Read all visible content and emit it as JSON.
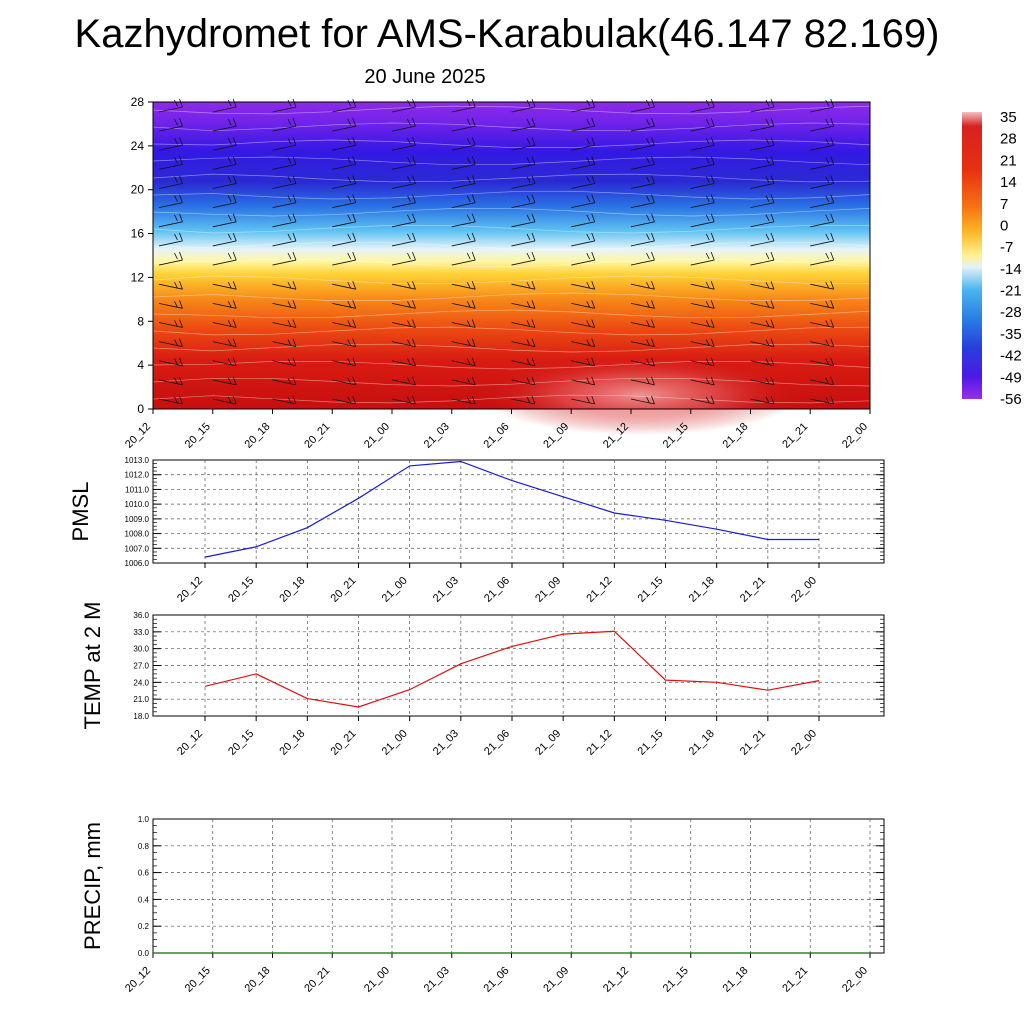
{
  "title": "Kazhydromet for AMS-Karabulak(46.147 82.169)",
  "subtitle": "20 June 2025",
  "chart_data": [
    {
      "type": "heatmap",
      "title": "",
      "ylim": [
        0,
        28
      ],
      "y_ticks": [
        "0",
        "4",
        "8",
        "12",
        "16",
        "20",
        "24",
        "28"
      ],
      "x_ticks": [
        "20_12",
        "20_15",
        "20_18",
        "20_21",
        "21_00",
        "21_03",
        "21_06",
        "21_09",
        "21_12",
        "21_15",
        "21_18",
        "21_21",
        "22_00"
      ],
      "colorbar": {
        "labels": [
          "35",
          "28",
          "21",
          "14",
          "7",
          "0",
          "-7",
          "-14",
          "-21",
          "-28",
          "-35",
          "-42",
          "-49",
          "-56"
        ],
        "colors_top_to_bottom": [
          "#f2b8b8",
          "#cc1010",
          "#e62a10",
          "#f35e10",
          "#fb9a1c",
          "#ffd23a",
          "#fff8a0",
          "#cfe8f5",
          "#44b2ec",
          "#2a8ae6",
          "#2656dc",
          "#2a1ee0",
          "#5c18e8",
          "#8e2ae8"
        ]
      },
      "notes": "temperature cross-section with wind barbs"
    },
    {
      "type": "line",
      "ylabel": "PMSL",
      "ylim": [
        1006.0,
        1013.0
      ],
      "y_ticks": [
        "1006.0",
        "1007.0",
        "1008.0",
        "1009.0",
        "1010.0",
        "1011.0",
        "1012.0",
        "1013.0"
      ],
      "x": [
        "20_12",
        "20_15",
        "20_18",
        "20_21",
        "21_00",
        "21_03",
        "21_06",
        "21_09",
        "21_12",
        "21_15",
        "21_18",
        "21_21",
        "22_00"
      ],
      "series": [
        {
          "color": "#1a1ad6",
          "values": [
            1006.4,
            1007.1,
            1008.4,
            1010.4,
            1012.6,
            1012.9,
            1011.6,
            1010.5,
            1009.4,
            1008.9,
            1008.3,
            1007.6,
            1007.6
          ]
        }
      ],
      "grid": true
    },
    {
      "type": "line",
      "ylabel": "TEMP at 2 M",
      "ylim": [
        18.0,
        36.0
      ],
      "y_ticks": [
        "18.0",
        "21.0",
        "24.0",
        "27.0",
        "30.0",
        "33.0",
        "36.0"
      ],
      "x": [
        "20_12",
        "20_15",
        "20_18",
        "20_21",
        "21_00",
        "21_03",
        "21_06",
        "21_09",
        "21_12",
        "21_15",
        "21_18",
        "21_21",
        "22_00"
      ],
      "series": [
        {
          "color": "#e01010",
          "values": [
            23.3,
            25.5,
            21.1,
            19.6,
            22.7,
            27.3,
            30.4,
            32.6,
            33.1,
            24.4,
            24.0,
            22.6,
            24.3
          ]
        }
      ],
      "grid": true
    },
    {
      "type": "line",
      "ylabel": "PRECIP, mm",
      "ylim": [
        0.0,
        1.0
      ],
      "y_ticks": [
        "0.0",
        "0.2",
        "0.4",
        "0.6",
        "0.8",
        "1.0"
      ],
      "x": [
        "20_12",
        "20_15",
        "20_18",
        "20_21",
        "21_00",
        "21_03",
        "21_06",
        "21_09",
        "21_12",
        "21_15",
        "21_18",
        "21_21",
        "22_00"
      ],
      "series": [
        {
          "color": "#0a6a0a",
          "values": [
            0,
            0,
            0,
            0,
            0,
            0,
            0,
            0,
            0,
            0,
            0,
            0,
            0
          ]
        }
      ],
      "grid": true
    }
  ]
}
